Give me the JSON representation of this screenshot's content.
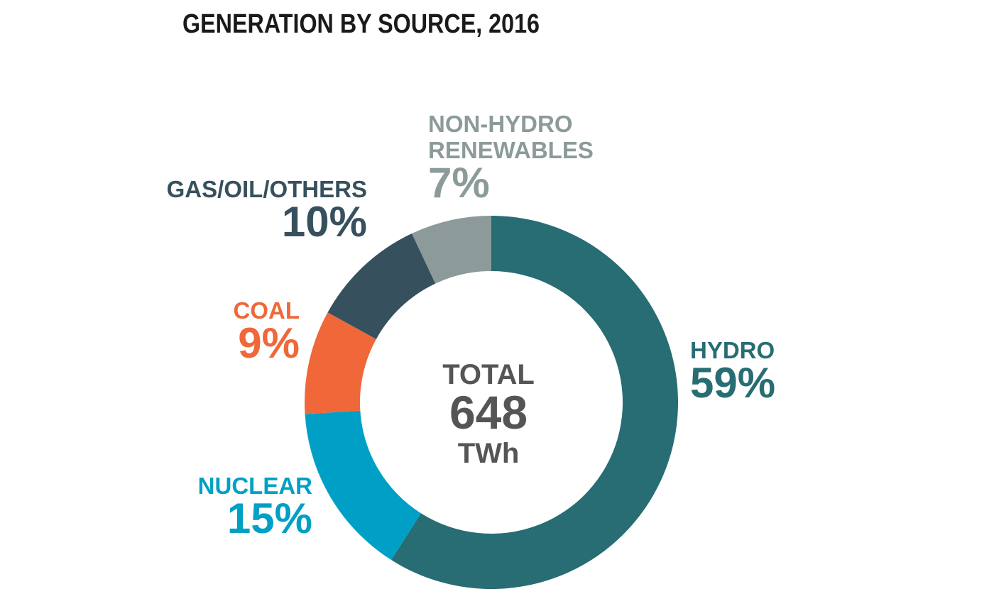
{
  "chart_data": {
    "type": "donut",
    "title": "GENERATION BY SOURCE, 2016",
    "categories": [
      "HYDRO",
      "NUCLEAR",
      "COAL",
      "GAS/OIL/OTHERS",
      "NON-HYDRO RENEWABLES"
    ],
    "values": [
      59,
      15,
      9,
      10,
      7
    ],
    "value_labels": [
      "59%",
      "15%",
      "9%",
      "10%",
      "7%"
    ],
    "colors": [
      "#276d73",
      "#00a0c6",
      "#f0673a",
      "#37505d",
      "#8c9a9a"
    ],
    "center": {
      "label": "TOTAL",
      "value": 648,
      "unit": "TWh"
    }
  }
}
